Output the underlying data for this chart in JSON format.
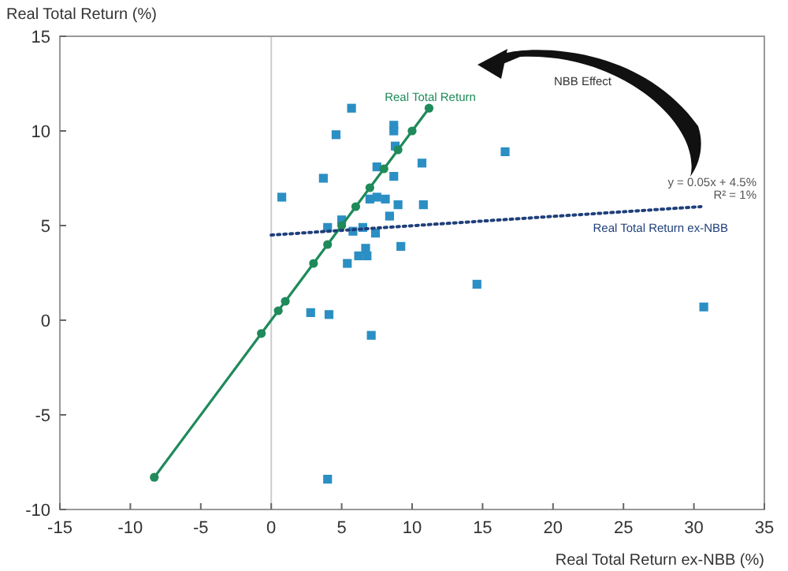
{
  "chart_data": {
    "type": "scatter",
    "xlabel": "Real Total Return ex-NBB (%)",
    "ylabel": "Real Total Return (%)",
    "xlim": [
      -15,
      35
    ],
    "xticks": [
      -15,
      -10,
      -5,
      0,
      5,
      10,
      15,
      20,
      25,
      30,
      35
    ],
    "ylim": [
      -10,
      15
    ],
    "yticks": [
      -10,
      -5,
      0,
      5,
      10,
      15
    ],
    "grid": false,
    "series": [
      {
        "marker": "square",
        "color": "#2b8fc4",
        "x": [
          0.75,
          5.7,
          4.6,
          3.7,
          4.0,
          5.0,
          5.4,
          6.2,
          6.8,
          6.7,
          7.5,
          8.7,
          8.7,
          5.8,
          6.5,
          7.4,
          7.5,
          8.4,
          8.7,
          7.0,
          10.7,
          16.6,
          8.1,
          9.0,
          10.8,
          9.2,
          2.8,
          4.1,
          7.1,
          4.0,
          30.7,
          14.6,
          8.8
        ],
        "values": [
          6.5,
          11.2,
          9.8,
          7.5,
          4.9,
          5.3,
          3.0,
          3.4,
          3.4,
          3.8,
          8.1,
          10.3,
          10.0,
          4.7,
          4.9,
          4.6,
          6.5,
          5.5,
          7.6,
          6.4,
          8.3,
          8.9,
          6.4,
          6.1,
          6.1,
          3.9,
          0.4,
          0.3,
          -0.8,
          -8.4,
          0.7,
          1.9,
          9.2
        ]
      },
      {
        "type": "line",
        "marker": "circle",
        "line_style": "solid",
        "color": "#1f8a5a",
        "x": [
          -8.3,
          -0.7,
          0.5,
          1,
          3,
          4,
          5,
          6,
          7,
          8,
          9,
          10,
          11.2
        ],
        "values": [
          -8.3,
          -0.7,
          0.5,
          1,
          3,
          4,
          5,
          6,
          7,
          8,
          9,
          10,
          11.2
        ]
      },
      {
        "type": "line",
        "marker": "none",
        "line_style": "dotted",
        "color": "#1f3f7a",
        "x": [
          0,
          30.5
        ],
        "values": [
          4.5,
          6.0
        ]
      }
    ],
    "ref_lines": [
      {
        "axis": "x",
        "value": 0,
        "color": "#cccccc"
      }
    ],
    "annotations": [
      "Real Total Return",
      "NBB Effect",
      "y = 0.05x + 4.5%",
      "R² = 1%",
      "Real Total Return ex-NBB"
    ]
  }
}
